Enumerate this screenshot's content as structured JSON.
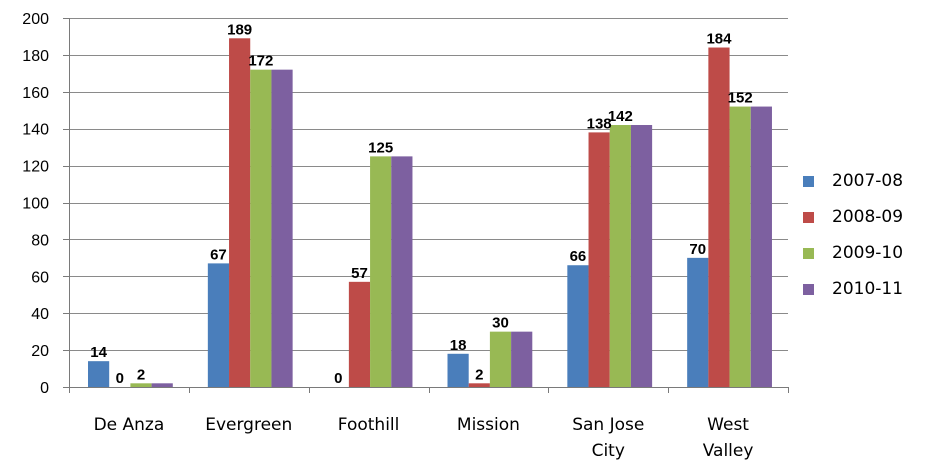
{
  "chart_data": {
    "type": "bar",
    "categories": [
      [
        "De Anza"
      ],
      [
        "Evergreen"
      ],
      [
        "Foothill"
      ],
      [
        "Mission"
      ],
      [
        "San Jose",
        "City"
      ],
      [
        "West",
        "Valley"
      ]
    ],
    "series": [
      {
        "name": "2007-08",
        "color": "#4a7ebb",
        "values": [
          14,
          67,
          0,
          18,
          66,
          70
        ]
      },
      {
        "name": "2008-09",
        "color": "#be4b48",
        "values": [
          0,
          189,
          57,
          2,
          138,
          184
        ]
      },
      {
        "name": "2009-10",
        "color": "#98b954",
        "values": [
          2,
          172,
          125,
          30,
          142,
          152
        ]
      },
      {
        "name": "2010-11",
        "color": "#7d60a0",
        "values": [
          2,
          172,
          125,
          30,
          142,
          152
        ]
      }
    ],
    "data_labels": [
      [
        {
          "series": 0,
          "text": "14"
        },
        {
          "series": 1,
          "text": "0"
        },
        {
          "series": 2,
          "text": "2"
        }
      ],
      [
        {
          "series": 0,
          "text": "67"
        },
        {
          "series": 1,
          "text": "189"
        },
        {
          "series": 2,
          "text": "172"
        }
      ],
      [
        {
          "series": 0,
          "text": "0"
        },
        {
          "series": 1,
          "text": "57"
        },
        {
          "series": 2,
          "text": "125"
        }
      ],
      [
        {
          "series": 0,
          "text": "18"
        },
        {
          "series": 1,
          "text": "2"
        },
        {
          "series": 2,
          "text": "30"
        }
      ],
      [
        {
          "series": 0,
          "text": "66"
        },
        {
          "series": 1,
          "text": "138"
        },
        {
          "series": 2,
          "text": "142"
        }
      ],
      [
        {
          "series": 0,
          "text": "70"
        },
        {
          "series": 1,
          "text": "184"
        },
        {
          "series": 2,
          "text": "152"
        }
      ]
    ],
    "yticks": [
      "0",
      "20",
      "40",
      "60",
      "80",
      "100",
      "120",
      "140",
      "160",
      "180",
      "200"
    ],
    "ylim": [
      0,
      200
    ],
    "grid": true,
    "legend_position": "right",
    "title": "",
    "xlabel": "",
    "ylabel": ""
  }
}
